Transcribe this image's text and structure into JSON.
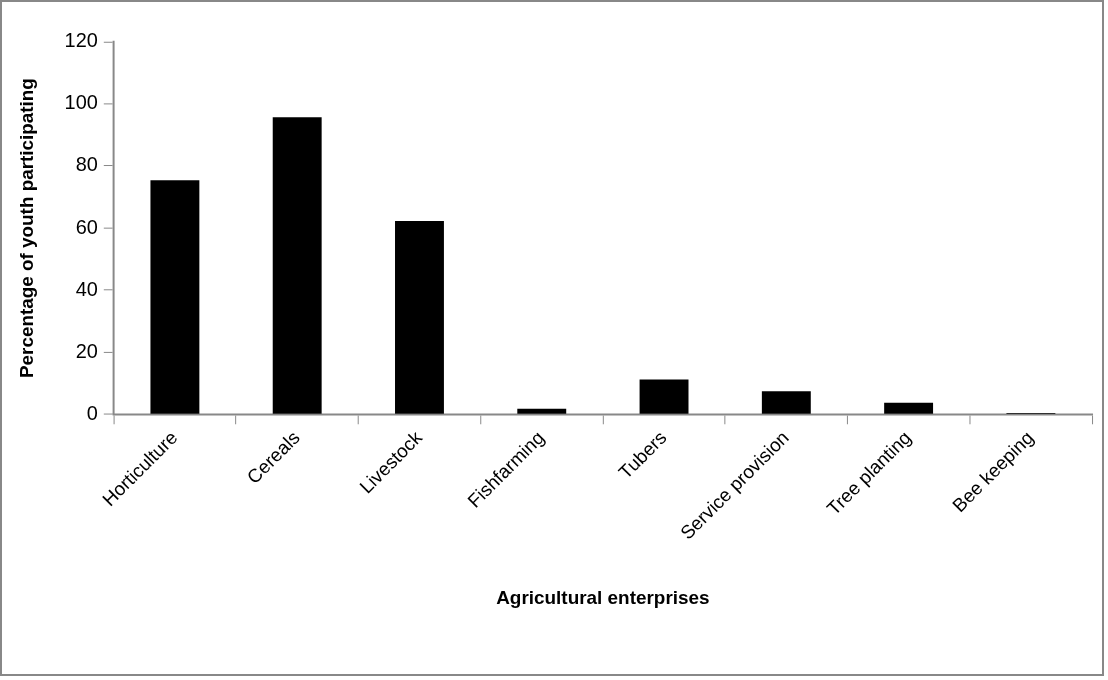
{
  "chart_data": {
    "type": "bar",
    "xlabel": "Agricultural enterprises",
    "ylabel": "Percentage of youth participating",
    "categories": [
      "Horticulture",
      "Cereals",
      "Livestock",
      "Fishfarming",
      "Tubers",
      "Service provision",
      "Tree planting",
      "Bee keeping"
    ],
    "values": [
      75.4,
      95.7,
      62.3,
      1.8,
      11.2,
      7.4,
      3.7,
      0.4
    ],
    "color": "#000000",
    "ylim": [
      0,
      120
    ],
    "yticks": [
      0,
      20,
      40,
      60,
      80,
      100,
      120
    ],
    "grid": false,
    "legend": false
  }
}
